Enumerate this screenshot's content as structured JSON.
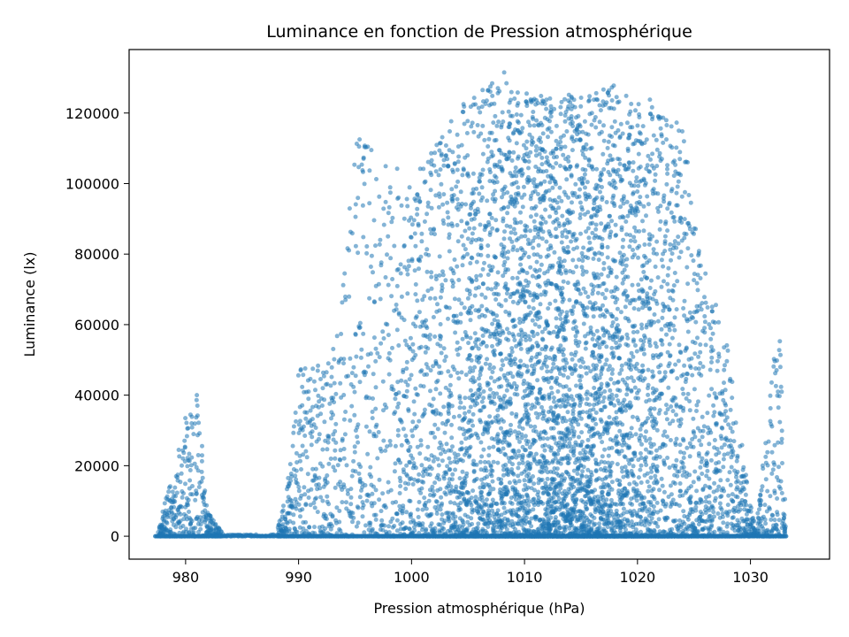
{
  "chart_data": {
    "type": "scatter",
    "title": "Luminance en fonction de Pression atmosphérique",
    "xlabel": "Pression atmosphérique (hPa)",
    "ylabel": "Luminance (lx)",
    "xlim": [
      975,
      1037
    ],
    "ylim": [
      -6500,
      138000
    ],
    "x_ticks": [
      980,
      990,
      1000,
      1010,
      1020,
      1030
    ],
    "y_ticks": [
      0,
      20000,
      40000,
      60000,
      80000,
      100000,
      120000
    ],
    "x_tick_labels": [
      "980",
      "990",
      "1000",
      "1010",
      "1020",
      "1030"
    ],
    "y_tick_labels": [
      "0",
      "20000",
      "40000",
      "60000",
      "80000",
      "100000",
      "120000"
    ],
    "grid": false,
    "legend": "none",
    "marker_color": "#1f77b4",
    "marker_alpha": 0.55,
    "series": [
      {
        "x_range": [
          977.3,
          1033.2
        ],
        "density_profile": [
          {
            "x": 977.5,
            "ymax": 0
          },
          {
            "x": 978.5,
            "ymax": 14000
          },
          {
            "x": 980.0,
            "ymax": 34000
          },
          {
            "x": 981.0,
            "ymax": 40000
          },
          {
            "x": 982.0,
            "ymax": 7000
          },
          {
            "x": 983.5,
            "ymax": 500
          },
          {
            "x": 988.0,
            "ymax": 500
          },
          {
            "x": 989.0,
            "ymax": 15000
          },
          {
            "x": 990.0,
            "ymax": 47000
          },
          {
            "x": 993.0,
            "ymax": 50000
          },
          {
            "x": 995.0,
            "ymax": 112000
          },
          {
            "x": 997.0,
            "ymax": 110000
          },
          {
            "x": 1000.0,
            "ymax": 100000
          },
          {
            "x": 1004.0,
            "ymax": 122000
          },
          {
            "x": 1008.0,
            "ymax": 131000
          },
          {
            "x": 1012.0,
            "ymax": 124000
          },
          {
            "x": 1018.0,
            "ymax": 128000
          },
          {
            "x": 1021.0,
            "ymax": 124000
          },
          {
            "x": 1024.0,
            "ymax": 116000
          },
          {
            "x": 1025.5,
            "ymax": 80000
          },
          {
            "x": 1027.5,
            "ymax": 66000
          },
          {
            "x": 1029.0,
            "ymax": 30000
          },
          {
            "x": 1030.5,
            "ymax": 500
          },
          {
            "x": 1032.0,
            "ymax": 50000
          },
          {
            "x": 1032.7,
            "ymax": 55000
          },
          {
            "x": 1033.2,
            "ymax": 1000
          }
        ],
        "notable_points": [
          {
            "x": 1008.2,
            "y": 131500
          },
          {
            "x": 1017.9,
            "y": 127800
          },
          {
            "x": 1021.1,
            "y": 123800
          },
          {
            "x": 1011.6,
            "y": 123500
          },
          {
            "x": 1004.6,
            "y": 122500
          },
          {
            "x": 995.4,
            "y": 112500
          },
          {
            "x": 981.0,
            "y": 40000
          },
          {
            "x": 990.2,
            "y": 47300
          },
          {
            "x": 1032.6,
            "y": 55300
          }
        ]
      }
    ]
  }
}
